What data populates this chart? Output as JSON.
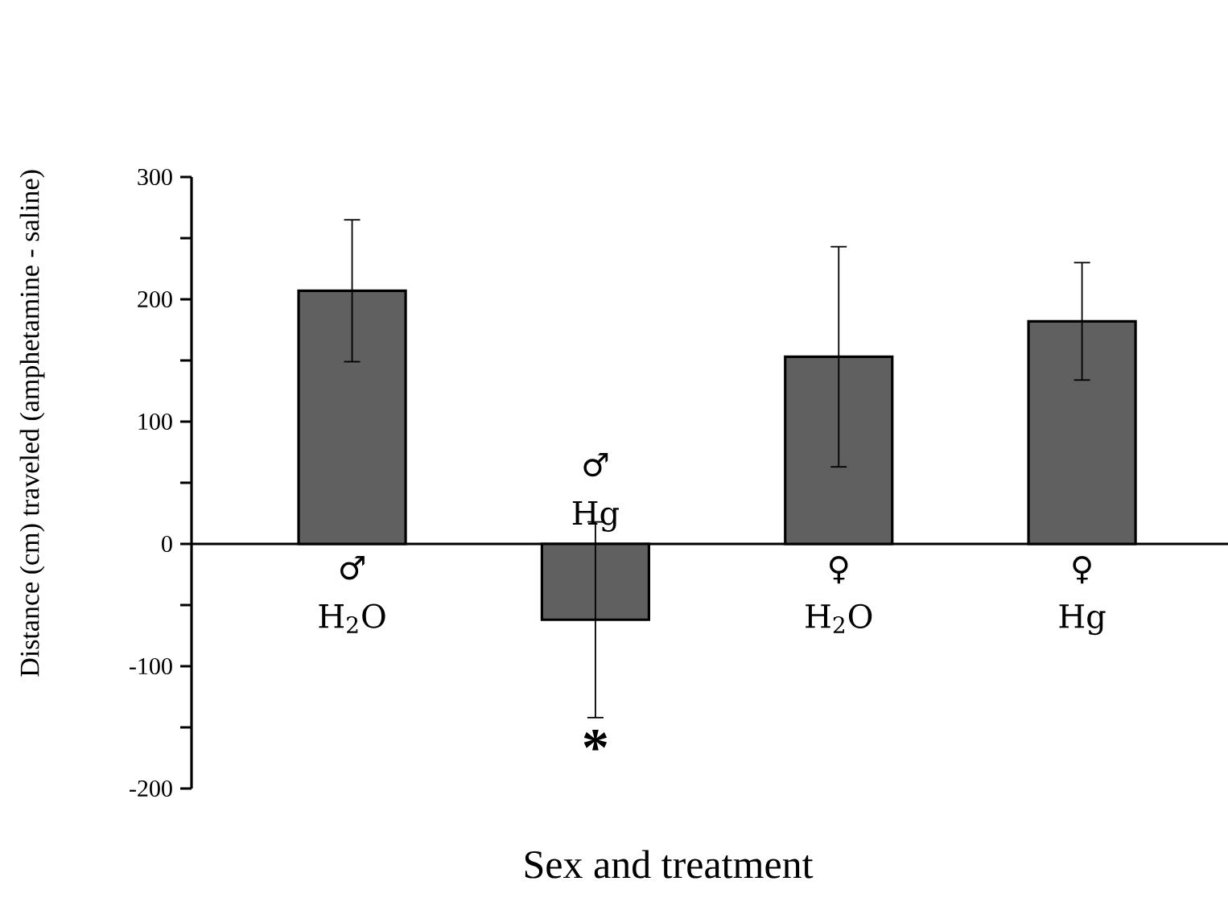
{
  "chart_data": {
    "type": "bar",
    "xlabel": "Sex and treatment",
    "ylabel": "Distance (cm) traveled (amphetamine - saline)",
    "categories": [
      "♂ H$_{2}$O",
      "♂ Hg",
      "♀ H$_{2}$O",
      "♀ Hg"
    ],
    "values": [
      207,
      -62,
      153,
      182
    ],
    "errors": [
      58,
      80,
      90,
      48
    ],
    "color": "#606060",
    "ylim": [
      -200,
      300
    ],
    "yticks": [
      -200,
      -100,
      0,
      100,
      200,
      300
    ],
    "annotations": [
      "*"
    ]
  }
}
